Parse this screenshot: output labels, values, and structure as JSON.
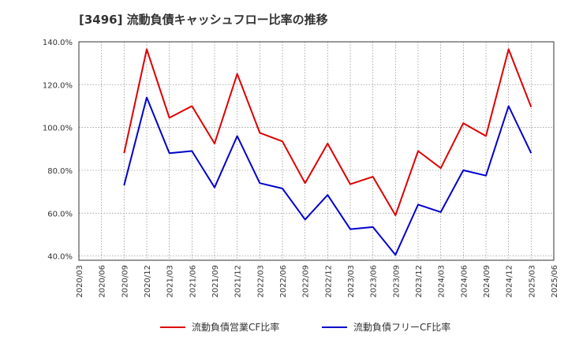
{
  "chart_data": {
    "type": "line",
    "title": "[3496]  流動負債キャッシュフロー比率の推移",
    "x_ticks": [
      "2020/03",
      "2020/06",
      "2020/09",
      "2020/12",
      "2021/03",
      "2021/06",
      "2021/09",
      "2021/12",
      "2022/03",
      "2022/06",
      "2022/09",
      "2022/12",
      "2023/03",
      "2023/06",
      "2023/09",
      "2023/12",
      "2024/03",
      "2024/06",
      "2024/09",
      "2024/12",
      "2025/03",
      "2025/06"
    ],
    "y_ticks": [
      "40.0%",
      "60.0%",
      "80.0%",
      "100.0%",
      "120.0%",
      "140.0%"
    ],
    "ylim": [
      38,
      140
    ],
    "grid": true,
    "legend_position": "bottom",
    "series": [
      {
        "name": "流動負債営業CF比率",
        "color": "#dd0000",
        "x": [
          "2020/09",
          "2020/12",
          "2021/03",
          "2021/06",
          "2021/09",
          "2021/12",
          "2022/03",
          "2022/06",
          "2022/09",
          "2022/12",
          "2023/03",
          "2023/06",
          "2023/09",
          "2023/12",
          "2024/03",
          "2024/06",
          "2024/09",
          "2024/12",
          "2025/03"
        ],
        "values": [
          88,
          136.5,
          104.5,
          110,
          92.5,
          125,
          97.5,
          93.5,
          74,
          92.5,
          73.5,
          77,
          59,
          89,
          81,
          102,
          96,
          136.5,
          109.5
        ]
      },
      {
        "name": "流動負債フリーCF比率",
        "color": "#0000cc",
        "x": [
          "2020/09",
          "2020/12",
          "2021/03",
          "2021/06",
          "2021/09",
          "2021/12",
          "2022/03",
          "2022/06",
          "2022/09",
          "2022/12",
          "2023/03",
          "2023/06",
          "2023/09",
          "2023/12",
          "2024/03",
          "2024/06",
          "2024/09",
          "2024/12",
          "2025/03"
        ],
        "values": [
          73,
          114,
          88,
          89,
          72,
          96,
          74,
          71.5,
          57,
          68.5,
          52.5,
          53.5,
          40.5,
          64,
          60.5,
          80,
          77.5,
          110,
          88
        ]
      }
    ]
  }
}
